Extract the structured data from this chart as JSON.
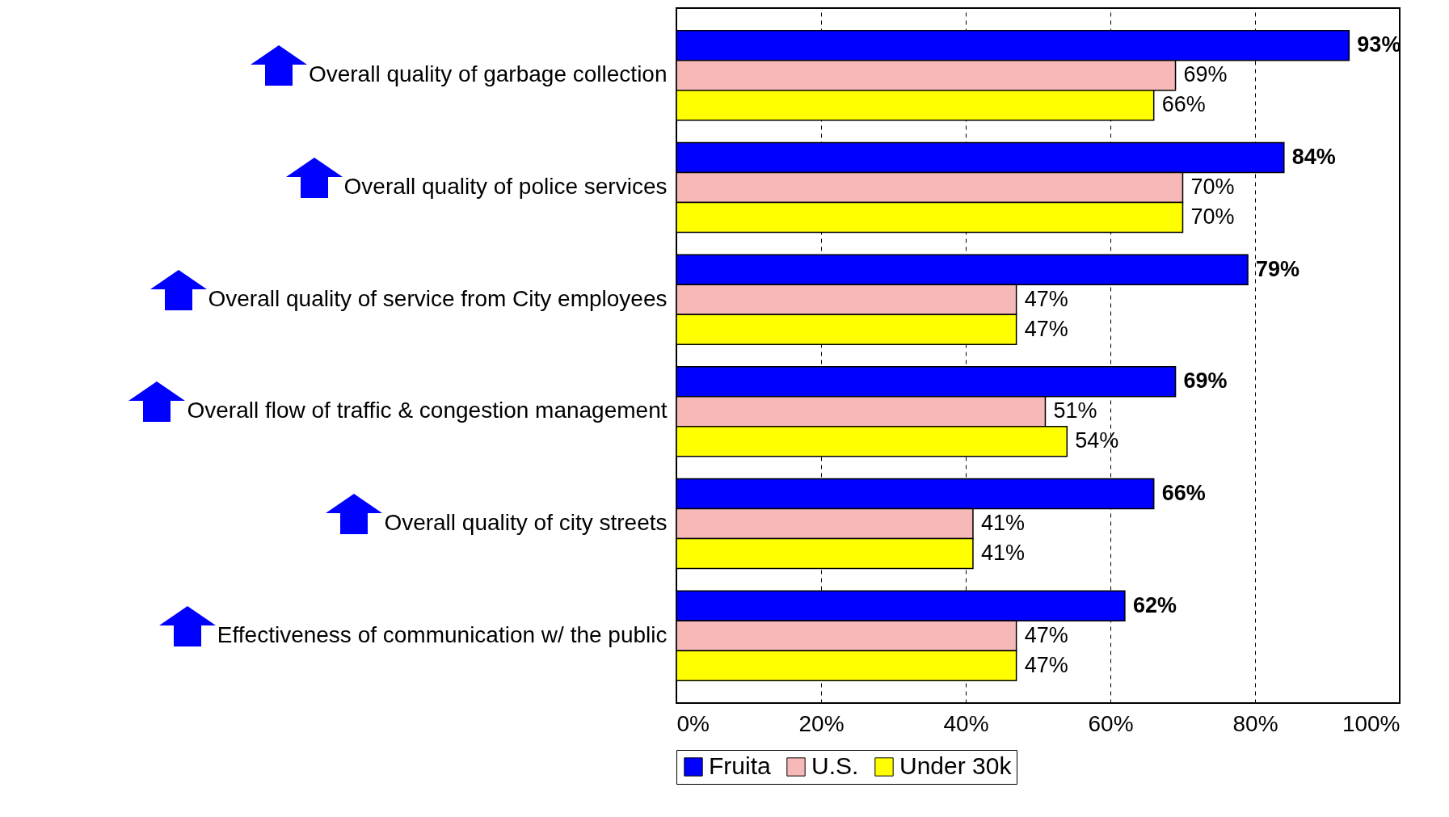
{
  "chart_data": {
    "type": "bar",
    "orientation": "horizontal",
    "categories": [
      "Overall quality of garbage collection",
      "Overall quality of police services",
      "Overall quality of service from City employees",
      "Overall flow of traffic & congestion management",
      "Overall quality of city streets",
      "Effectiveness of communication w/ the public"
    ],
    "series": [
      {
        "name": "Fruita",
        "color": "#0000ff",
        "values": [
          93,
          84,
          79,
          69,
          66,
          62
        ],
        "value_labels": [
          "93%",
          "84%",
          "79%",
          "69%",
          "66%",
          "62%"
        ]
      },
      {
        "name": "U.S.",
        "color": "#f7b8b8",
        "values": [
          69,
          70,
          47,
          51,
          41,
          47
        ],
        "value_labels": [
          "69%",
          "70%",
          "47%",
          "51%",
          "41%",
          "47%"
        ]
      },
      {
        "name": "Under 30k",
        "color": "#ffff00",
        "values": [
          66,
          70,
          47,
          54,
          41,
          47
        ],
        "value_labels": [
          "66%",
          "70%",
          "47%",
          "54%",
          "41%",
          "47%"
        ]
      }
    ],
    "xlim": [
      0,
      100
    ],
    "xticks": [
      {
        "value": 0,
        "label": "0%"
      },
      {
        "value": 20,
        "label": "20%"
      },
      {
        "value": 40,
        "label": "40%"
      },
      {
        "value": 60,
        "label": "60%"
      },
      {
        "value": 80,
        "label": "80%"
      },
      {
        "value": 100,
        "label": "100%"
      }
    ],
    "grid": "x",
    "legend": "bottom"
  }
}
